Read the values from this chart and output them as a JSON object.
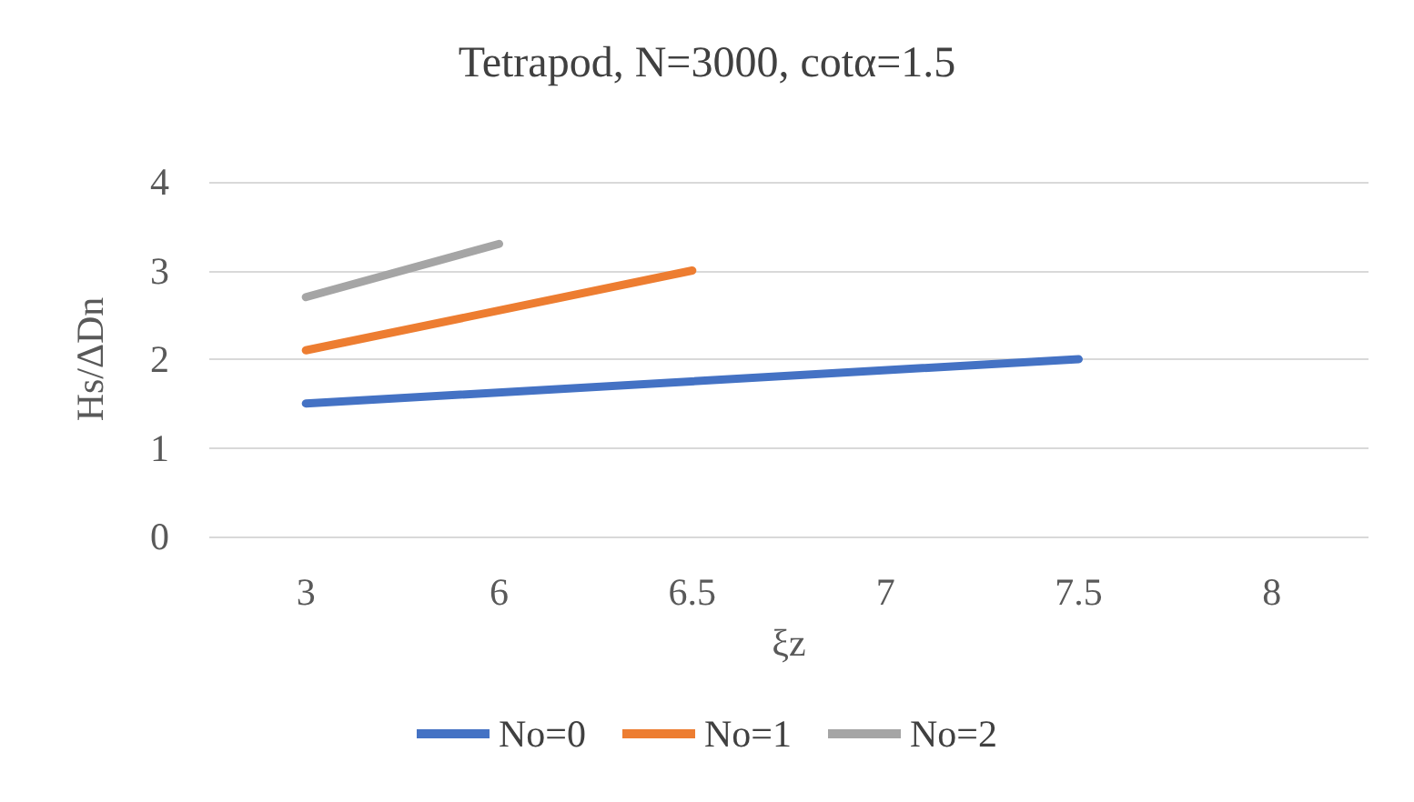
{
  "chart_data": {
    "type": "line",
    "title": "Tetrapod, N=3000, cotα=1.5",
    "xlabel": "ξz",
    "ylabel": "Hs/ΔDn",
    "categories": [
      "3",
      "6",
      "6.5",
      "7",
      "7.5",
      "8"
    ],
    "series": [
      {
        "name": "No=0",
        "color": "#4472c4",
        "values": [
          1.5,
          null,
          null,
          null,
          2.0,
          null
        ]
      },
      {
        "name": "No=1",
        "color": "#ed7d31",
        "values": [
          2.1,
          null,
          3.0,
          null,
          null,
          null
        ]
      },
      {
        "name": "No=2",
        "color": "#a5a5a5",
        "values": [
          2.7,
          3.3,
          null,
          null,
          null,
          null
        ]
      }
    ],
    "ylim": [
      0,
      4
    ],
    "yticks": [
      0,
      1,
      2,
      3,
      4
    ],
    "grid": "y",
    "legend": "bottom",
    "marker": "none",
    "line_style": "solid"
  }
}
